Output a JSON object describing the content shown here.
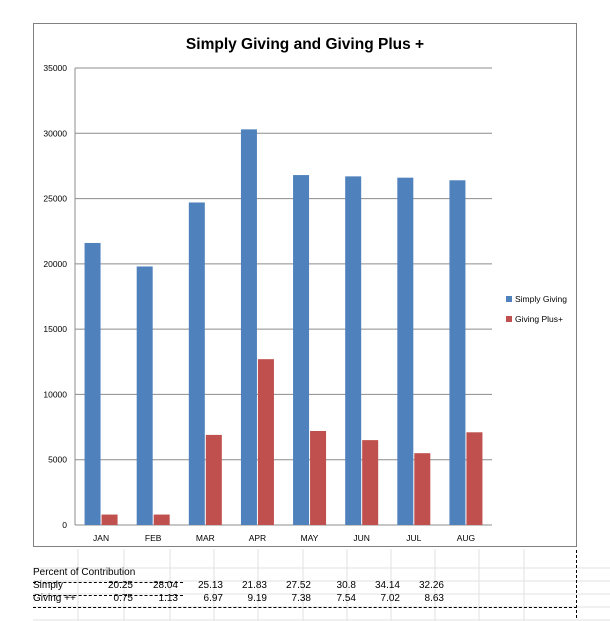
{
  "chart_data": {
    "type": "bar",
    "title": "Simply Giving and Giving Plus +",
    "categories": [
      "JAN",
      "FEB",
      "MAR",
      "APR",
      "MAY",
      "JUN",
      "JUL",
      "AUG"
    ],
    "series": [
      {
        "name": "Simply Giving",
        "color": "#4f81bd",
        "values": [
          21600,
          19800,
          24700,
          30300,
          26800,
          26700,
          26600,
          26400
        ]
      },
      {
        "name": "Giving Plus+",
        "color": "#c0504d",
        "values": [
          800,
          800,
          6900,
          12700,
          7200,
          6500,
          5500,
          7100
        ]
      }
    ],
    "ylim": [
      0,
      35000
    ],
    "yticks": [
      0,
      5000,
      10000,
      15000,
      20000,
      25000,
      30000,
      35000
    ],
    "grid": true,
    "legend_position": "right"
  },
  "table": {
    "heading": "Percent of Contribution",
    "rows": [
      {
        "label": "Simply",
        "values": [
          "20.25",
          "28.04",
          "25.13",
          "21.83",
          "27.52",
          "30.8",
          "34.14",
          "32.26"
        ]
      },
      {
        "label": "Giving ++",
        "values": [
          "0.75",
          "1.13",
          "6.97",
          "9.19",
          "7.38",
          "7.54",
          "7.02",
          "8.63"
        ]
      }
    ]
  }
}
